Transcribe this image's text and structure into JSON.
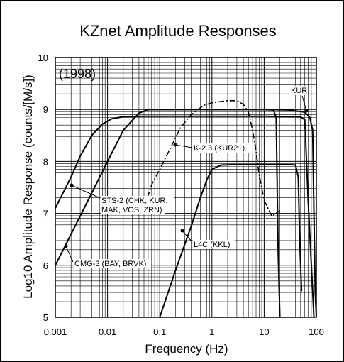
{
  "chart_data": {
    "type": "line",
    "title": "KZnet Amplitude Responses",
    "xlabel": "Frequency (Hz)",
    "ylabel": "Log10 Amplitude Response (counts/[M/s])",
    "x_scale": "log",
    "xlim": [
      0.001,
      100
    ],
    "ylim": [
      5,
      10
    ],
    "grid": true,
    "x_ticks": [
      "0.001",
      "0.01",
      "0.1",
      "1",
      "10",
      "100"
    ],
    "y_ticks": [
      "5",
      "6",
      "7",
      "8",
      "9",
      "10"
    ],
    "year_label": "(1998)",
    "series": [
      {
        "name": "STS-2 (CHK, KUR, MAK, VOS, ZRN)",
        "style": "solid",
        "x": [
          0.001,
          0.002,
          0.003,
          0.005,
          0.008,
          0.012,
          0.02,
          0.05,
          1,
          10,
          50,
          60,
          70,
          90
        ],
        "y": [
          7.1,
          7.7,
          8.1,
          8.5,
          8.72,
          8.82,
          8.86,
          8.87,
          8.87,
          8.87,
          8.86,
          8.8,
          7.2,
          5.0
        ]
      },
      {
        "name": "CMG-3 (BAY, BRVK)",
        "style": "solid",
        "x": [
          0.001,
          0.002,
          0.004,
          0.01,
          0.02,
          0.04,
          0.06,
          0.1,
          1,
          10,
          15,
          17,
          18.5,
          20
        ],
        "y": [
          6.0,
          6.6,
          7.2,
          8.0,
          8.6,
          8.93,
          9.0,
          9.0,
          9.0,
          9.0,
          8.99,
          8.85,
          6.3,
          5.0
        ]
      },
      {
        "name": "K-2 3 (KUR21)",
        "style": "dash-dot",
        "x": [
          0.05,
          0.07,
          0.1,
          0.15,
          0.25,
          0.4,
          0.7,
          1,
          2,
          3,
          4,
          5,
          6,
          7,
          8,
          10,
          14,
          20
        ],
        "y": [
          7.1,
          7.55,
          7.85,
          8.2,
          8.65,
          8.9,
          9.08,
          9.13,
          9.17,
          9.17,
          9.1,
          8.95,
          8.6,
          8.2,
          7.75,
          7.25,
          6.95,
          7.05
        ]
      },
      {
        "name": "L4C (KKL)",
        "style": "solid",
        "x": [
          0.1,
          0.2,
          0.4,
          0.6,
          0.8,
          1,
          1.5,
          3,
          10,
          30,
          40,
          45,
          48,
          52
        ],
        "y": [
          5.0,
          5.9,
          6.75,
          7.3,
          7.65,
          7.85,
          7.93,
          7.94,
          7.94,
          7.94,
          7.93,
          7.7,
          6.5,
          5.5
        ]
      },
      {
        "name": "KUR",
        "style": "solid",
        "x": [
          0.06,
          0.1,
          1,
          10,
          30,
          60,
          75,
          85,
          90,
          95,
          100
        ],
        "y": [
          9.0,
          9.0,
          9.0,
          9.0,
          8.99,
          8.95,
          8.85,
          8.6,
          7.0,
          5.5,
          5.0
        ]
      }
    ],
    "annotations": [
      {
        "lines": [
          "STS-2 (CHK, KUR,",
          "MAK, VOS, ZRN)"
        ],
        "series": "STS-2 (CHK, KUR, MAK, VOS, ZRN)"
      },
      {
        "lines": [
          "CMG-3 (BAY, BRVK)"
        ],
        "series": "CMG-3 (BAY, BRVK)"
      },
      {
        "lines": [
          "K-2 3 (KUR21)"
        ],
        "series": "K-2 3 (KUR21)"
      },
      {
        "lines": [
          "L4C (KKL)"
        ],
        "series": "L4C (KKL)"
      },
      {
        "lines": [
          "KUR"
        ],
        "series": "KUR"
      }
    ]
  }
}
